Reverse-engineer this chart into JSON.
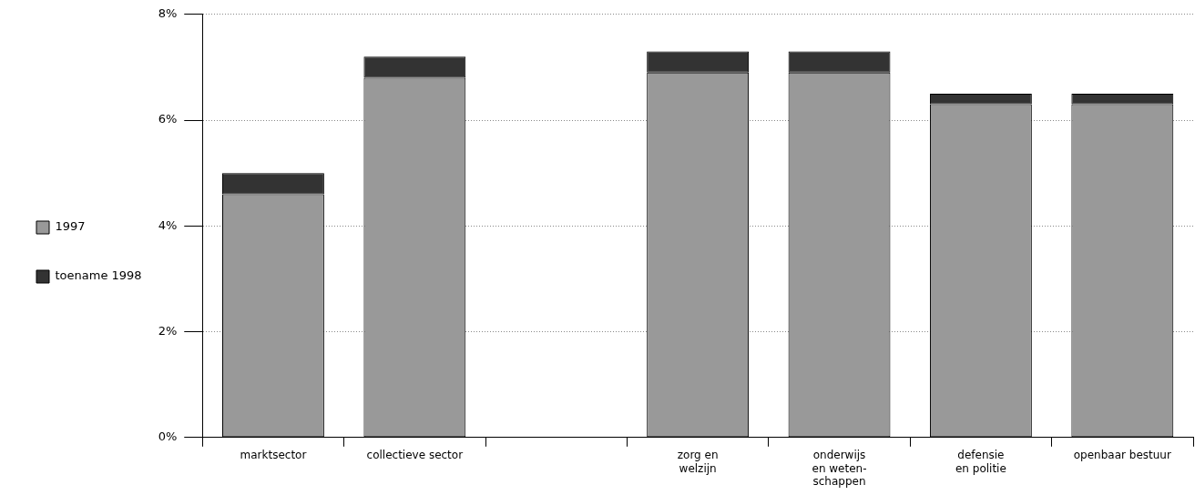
{
  "chart_data": {
    "type": "bar",
    "stacked": true,
    "categories": [
      "marktsector",
      "collectieve sector",
      null,
      "zorg en\nwelzijn",
      "onderwijs\nen weten-\nschappen",
      "defensie\nen politie",
      "openbaar bestuur"
    ],
    "series": [
      {
        "name": "1997",
        "color": "#999999",
        "values": [
          4.6,
          6.8,
          null,
          6.9,
          6.9,
          6.3,
          6.3
        ]
      },
      {
        "name": "toename 1998",
        "color": "#333333",
        "values": [
          0.4,
          0.4,
          null,
          0.4,
          0.4,
          0.2,
          0.2
        ]
      }
    ],
    "ylim": [
      0,
      8
    ],
    "yticks": [
      {
        "value": 0,
        "label": "0%"
      },
      {
        "value": 2,
        "label": "2%"
      },
      {
        "value": 4,
        "label": "4%"
      },
      {
        "value": 6,
        "label": "6%"
      },
      {
        "value": 8,
        "label": "8%"
      }
    ],
    "grid": "y",
    "legend": "left"
  }
}
